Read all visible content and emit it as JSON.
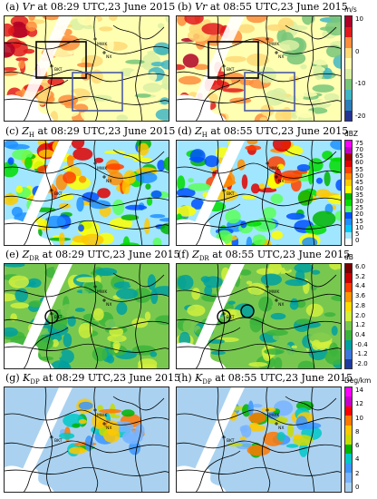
{
  "rows": [
    {
      "var_key": "vr",
      "unit": "m/s",
      "ticks": [
        "10",
        "0",
        "-10",
        "-20"
      ],
      "colors": [
        "#b00026",
        "#e31a1c",
        "#fd8d3c",
        "#fed976",
        "#ffffb2",
        "#d9f0a3",
        "#78c679",
        "#41b6c4",
        "#2c7fb8",
        "#253494"
      ],
      "panels": [
        {
          "label": "(a)",
          "var": "Vr",
          "sub": "",
          "time": " at 08:29 UTC,23 June 2015"
        },
        {
          "label": "(b)",
          "var": "Vr",
          "sub": "",
          "time": " at 08:55 UTC,23 June 2015"
        }
      ]
    },
    {
      "var_key": "zh",
      "unit": "dBZ",
      "ticks": [
        "75",
        "70",
        "65",
        "60",
        "55",
        "50",
        "45",
        "40",
        "35",
        "30",
        "25",
        "20",
        "15",
        "10",
        "5",
        "0"
      ],
      "colors": [
        "#ff00ff",
        "#c000c0",
        "#a00000",
        "#e00000",
        "#ff4000",
        "#ff8c00",
        "#ffc800",
        "#ffff00",
        "#00b400",
        "#00dc00",
        "#5aff5a",
        "#0050ff",
        "#1e90ff",
        "#00c8ff",
        "#a0e6ff",
        "#ffffff"
      ],
      "panels": [
        {
          "label": "(c)",
          "var": "Z",
          "sub": "H",
          "time": " at 08:29 UTC,23 June 2015"
        },
        {
          "label": "(d)",
          "var": "Z",
          "sub": "H",
          "time": " at 08:55 UTC,23 June 2015"
        }
      ]
    },
    {
      "var_key": "zdr",
      "unit": "dB",
      "ticks": [
        "6.0",
        "5.2",
        "4.4",
        "3.6",
        "2.8",
        "2.0",
        "1.2",
        "0.4",
        "-0.4",
        "-1.2",
        "-2.0"
      ],
      "colors": [
        "#7a0000",
        "#c80000",
        "#ff3c00",
        "#ff9600",
        "#ffdc00",
        "#d2f03c",
        "#78c850",
        "#3cb43c",
        "#00a0a0",
        "#3c78dc",
        "#1e3ca0"
      ],
      "panels": [
        {
          "label": "(e)",
          "var": "Z",
          "sub": "DR",
          "time": " at 08:29 UTC,23 June 2015"
        },
        {
          "label": "(f)",
          "var": "Z",
          "sub": "DR",
          "time": " at 08:55 UTC,23 June 2015"
        }
      ]
    },
    {
      "var_key": "kdp",
      "unit": "Deg/km",
      "ticks": [
        "14",
        "12",
        "10",
        "8",
        "6",
        "4",
        "2",
        "0"
      ],
      "colors": [
        "#ff00ff",
        "#c800c8",
        "#ff0000",
        "#ff7800",
        "#ffc800",
        "#c8dc00",
        "#00b400",
        "#00c8c8",
        "#3c96ff",
        "#78b4ff",
        "#aad2f0"
      ],
      "panels": [
        {
          "label": "(g)",
          "var": "K",
          "sub": "DP",
          "time": " at 08:29 UTC,23 June 2015"
        },
        {
          "label": "(h)",
          "var": "K",
          "sub": "DP",
          "time": " at 08:55 UTC,23 June 2015"
        }
      ]
    }
  ],
  "map_labels": [
    "BKT",
    "MWK",
    "NX"
  ]
}
